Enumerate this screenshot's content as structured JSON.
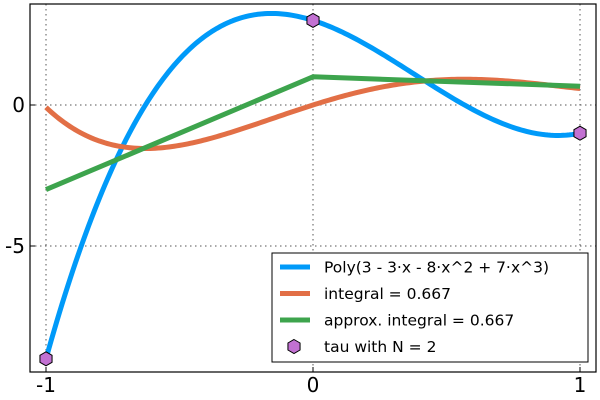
{
  "chart_data": {
    "type": "line",
    "title": "",
    "xlabel": "",
    "ylabel": "",
    "xlim": [
      -1.0,
      1.06
    ],
    "ylim": [
      -9.4,
      3.6
    ],
    "grid": true,
    "legend_position": "bottom-right",
    "x_ticks": [
      {
        "value": -1,
        "label": "-1"
      },
      {
        "value": 0,
        "label": "0"
      },
      {
        "value": 1,
        "label": "1"
      }
    ],
    "y_ticks": [
      {
        "value": 0,
        "label": "0"
      },
      {
        "value": -5,
        "label": "-5"
      }
    ],
    "series": [
      {
        "name": "Poly(3 - 3⋅x - 8⋅x^2 + 7⋅x^3)",
        "kind": "polynomial",
        "coefficients": [
          3,
          -3,
          -8,
          7
        ],
        "domain": [
          -1,
          1
        ],
        "color": "#009af9",
        "marker": "none"
      },
      {
        "name": "integral = 0.667",
        "kind": "polynomial",
        "coefficients": [
          0,
          3,
          -1.5,
          -2.6667,
          1.75
        ],
        "domain": [
          -1,
          1
        ],
        "color": "#e26f46",
        "marker": "none"
      },
      {
        "name": "approx. integral = 0.667",
        "kind": "points",
        "x": [
          -1,
          0,
          1
        ],
        "y": [
          -3,
          1,
          0.667
        ],
        "color": "#3da44d",
        "marker": "none"
      },
      {
        "name": "tau with N = 2",
        "kind": "scatter",
        "x": [
          -1,
          0,
          1
        ],
        "y": [
          -9,
          3,
          -1
        ],
        "color": "#c271d2",
        "marker": "hexagon"
      }
    ]
  }
}
